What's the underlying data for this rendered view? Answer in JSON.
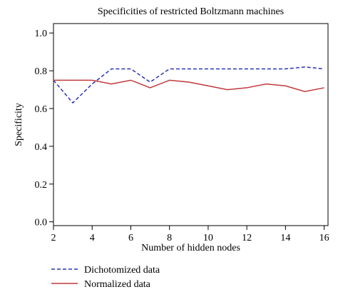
{
  "chart_data": {
    "type": "line",
    "title": "Specificities of restricted Boltzmann machines",
    "xlabel": "Number of hidden nodes",
    "ylabel": "Specificity",
    "x": [
      2,
      3,
      4,
      5,
      6,
      7,
      8,
      9,
      10,
      11,
      12,
      13,
      14,
      15,
      16
    ],
    "xlim": [
      2,
      16.2
    ],
    "ylim": [
      -0.02,
      1.05
    ],
    "xticks": [
      2,
      4,
      6,
      8,
      10,
      12,
      14,
      16
    ],
    "yticks": [
      0.0,
      0.2,
      0.4,
      0.6,
      0.8,
      1.0
    ],
    "ytick_labels": [
      "0.0",
      "0.2",
      "0.4",
      "0.6",
      "0.8",
      "1.0"
    ],
    "grid": false,
    "legend_position": "below",
    "series": [
      {
        "name": "Dichotomized data",
        "color": "#2a32b8",
        "dash": "dashed",
        "values": [
          0.75,
          0.63,
          0.73,
          0.81,
          0.81,
          0.74,
          0.81,
          0.81,
          0.81,
          0.81,
          0.81,
          0.81,
          0.81,
          0.82,
          0.81
        ]
      },
      {
        "name": "Normalized data",
        "color": "#c0393b",
        "dash": "solid",
        "values": [
          0.75,
          0.75,
          0.75,
          0.73,
          0.75,
          0.71,
          0.75,
          0.74,
          0.72,
          0.7,
          0.71,
          0.73,
          0.72,
          0.69,
          0.71
        ]
      }
    ]
  }
}
